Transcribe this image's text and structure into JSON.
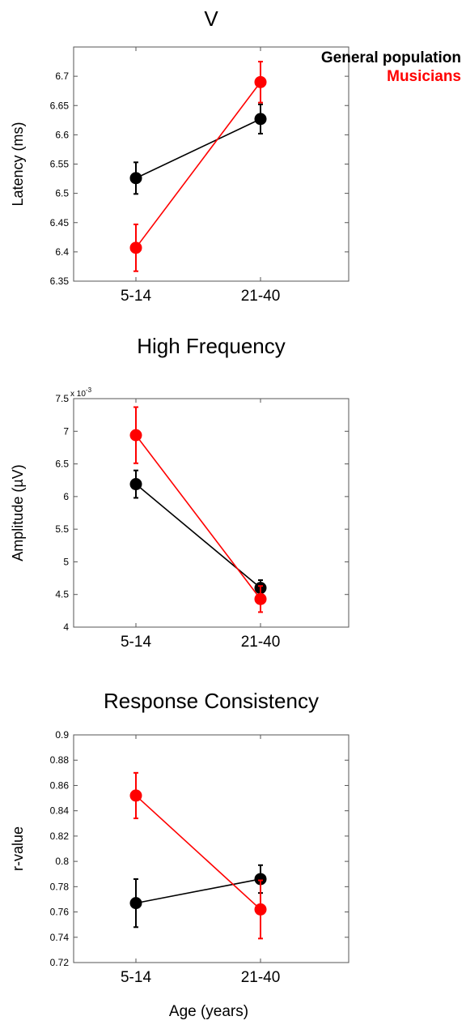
{
  "legend": {
    "general": "General population",
    "musicians": "Musicians"
  },
  "xlabel": "Age (years)",
  "colors": {
    "general": "#000000",
    "musicians": "#ff0000"
  },
  "chart_data": [
    {
      "type": "line",
      "title": "V",
      "ylabel": "Latency (ms)",
      "categories": [
        "5-14",
        "21-40"
      ],
      "ylim": [
        6.35,
        6.75
      ],
      "yticks": [
        "6.35",
        "6.4",
        "6.45",
        "6.5",
        "6.55",
        "6.6",
        "6.65",
        "6.7"
      ],
      "series": [
        {
          "name": "General population",
          "color": "#000000",
          "values": [
            6.526,
            6.627
          ],
          "errors": [
            0.027,
            0.025
          ]
        },
        {
          "name": "Musicians",
          "color": "#ff0000",
          "values": [
            6.407,
            6.69
          ],
          "errors": [
            0.04,
            0.035
          ]
        }
      ]
    },
    {
      "type": "line",
      "title": "High Frequency",
      "ylabel": "Amplitude (µV)",
      "exponent_label": "x 10",
      "exponent_power": "-3",
      "categories": [
        "5-14",
        "21-40"
      ],
      "ylim": [
        4,
        7.5
      ],
      "yticks": [
        "4",
        "4.5",
        "5",
        "5.5",
        "6",
        "6.5",
        "7",
        "7.5"
      ],
      "series": [
        {
          "name": "General population",
          "color": "#000000",
          "values": [
            6.19,
            4.6
          ],
          "errors": [
            0.21,
            0.12
          ]
        },
        {
          "name": "Musicians",
          "color": "#ff0000",
          "values": [
            6.94,
            4.43
          ],
          "errors": [
            0.43,
            0.2
          ]
        }
      ]
    },
    {
      "type": "line",
      "title": "Response Consistency",
      "ylabel": "r-value",
      "categories": [
        "5-14",
        "21-40"
      ],
      "ylim": [
        0.72,
        0.9
      ],
      "yticks": [
        "0.72",
        "0.74",
        "0.76",
        "0.78",
        "0.8",
        "0.82",
        "0.84",
        "0.86",
        "0.88",
        "0.9"
      ],
      "series": [
        {
          "name": "General population",
          "color": "#000000",
          "values": [
            0.767,
            0.786
          ],
          "errors": [
            0.019,
            0.011
          ]
        },
        {
          "name": "Musicians",
          "color": "#ff0000",
          "values": [
            0.852,
            0.762
          ],
          "errors": [
            0.018,
            0.023
          ]
        }
      ]
    }
  ]
}
